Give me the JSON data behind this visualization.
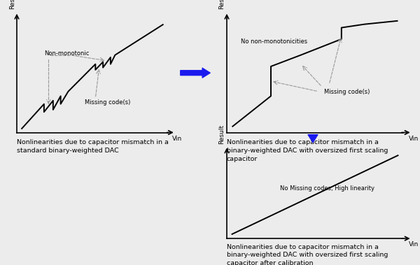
{
  "bg_color": "#ececec",
  "panel1_caption": "Nonlinearities due to capacitor mismatch in a\nstandard binary-weighted DAC",
  "panel2_caption": "Nonlinearities due to capacitor mismatch in a\nbinary-weighted DAC with oversized first scaling\ncapacitor",
  "panel3_caption": "Nonlinearities due to capacitor mismatch in a\nbinary-weighted DAC with oversized first scaling\ncapacitor after calibration",
  "ylabel": "Result",
  "xlabel": "Vin",
  "annotation1a": "Non-monotonic",
  "annotation1b": "Missing code(s)",
  "annotation2a": "No non-monotonicities",
  "annotation2b": "Missing code(s)",
  "annotation3": "No Missing codes, High linearity",
  "line_color": "#000000",
  "dashed_color": "#999999",
  "arrow_color": "#1a1aee"
}
